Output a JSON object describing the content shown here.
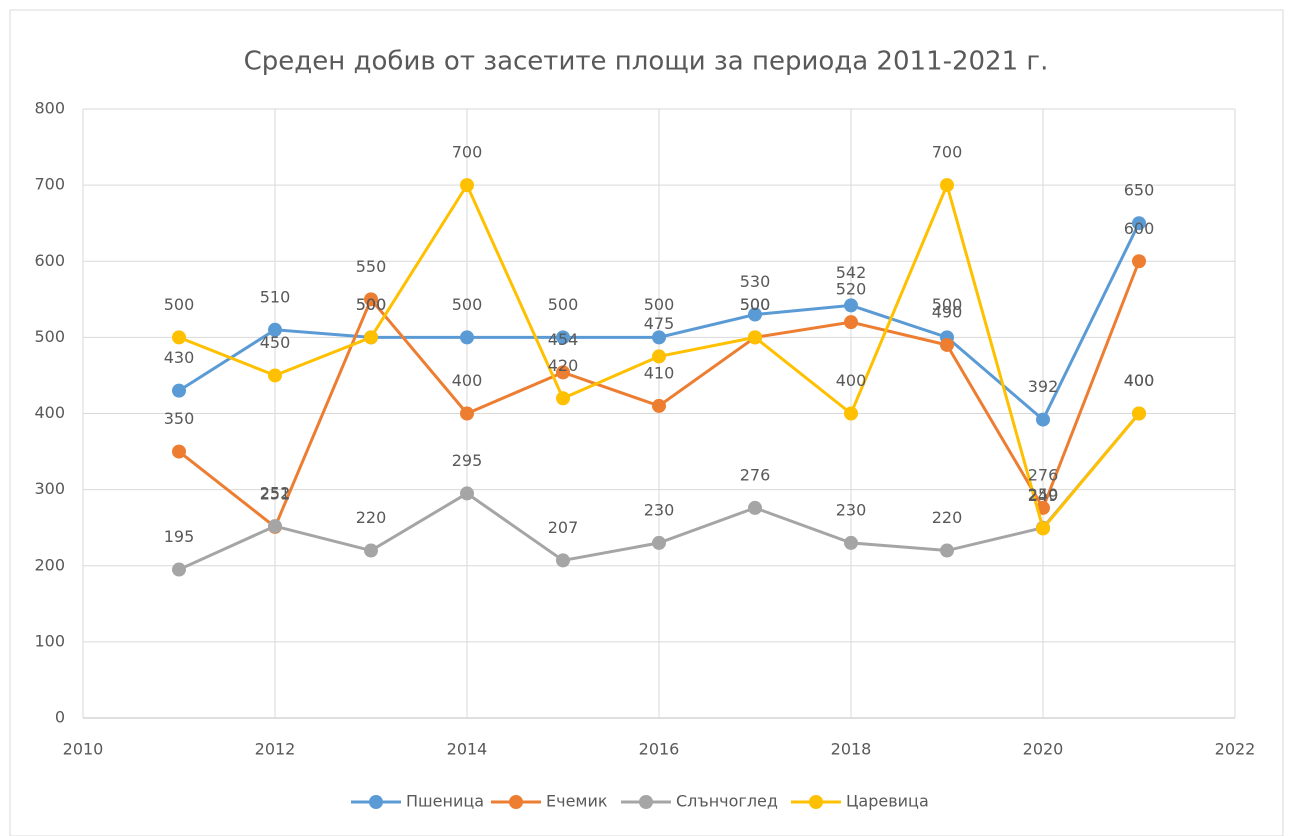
{
  "chart_data": {
    "type": "line",
    "title": "Среден добив от засетите площи за периода 2011-2021 г.",
    "x": [
      2011,
      2012,
      2013,
      2014,
      2015,
      2016,
      2017,
      2018,
      2019,
      2020,
      2021
    ],
    "series": [
      {
        "name": "Пшеница",
        "color": "#5b9bd5",
        "values": [
          430,
          510,
          500,
          500,
          500,
          500,
          530,
          542,
          500,
          392,
          650
        ]
      },
      {
        "name": "Ечемик",
        "color": "#ed7d31",
        "values": [
          350,
          251,
          550,
          400,
          454,
          410,
          500,
          520,
          490,
          276,
          600
        ]
      },
      {
        "name": "Слънчоглед",
        "color": "#a5a5a5",
        "values": [
          195,
          252,
          220,
          295,
          207,
          230,
          276,
          230,
          220,
          250,
          400
        ]
      },
      {
        "name": "Царевица",
        "color": "#ffc000",
        "values": [
          500,
          450,
          500,
          700,
          420,
          475,
          500,
          400,
          700,
          249,
          400
        ]
      }
    ],
    "xlim": [
      2010,
      2022
    ],
    "xticks": [
      2010,
      2012,
      2014,
      2016,
      2018,
      2020,
      2022
    ],
    "ylim": [
      0,
      800
    ],
    "yticks": [
      0,
      100,
      200,
      300,
      400,
      500,
      600,
      700,
      800
    ],
    "grid": true,
    "legend": "bottom"
  }
}
